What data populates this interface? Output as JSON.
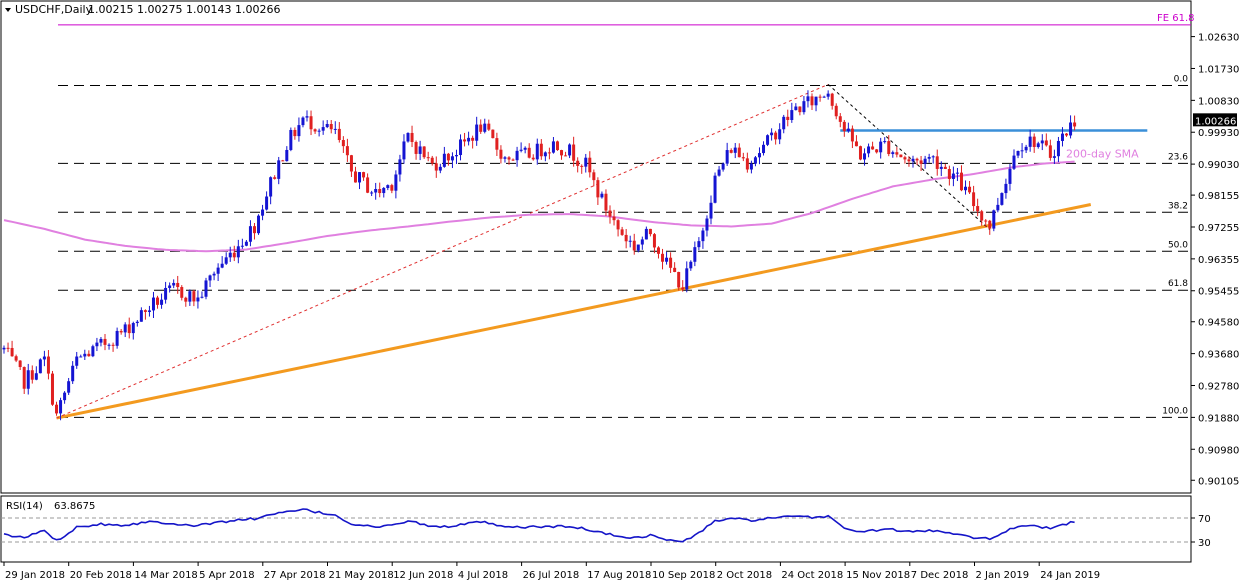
{
  "header": {
    "symbol": "USDCHF,Daily",
    "ohlc": "1.00215 1.00275 1.00143 1.00266"
  },
  "chart_data": {
    "type": "candlestick",
    "price_axis": {
      "range": [
        0.8983,
        1.0355
      ],
      "ticks": [
        "1.02630",
        "1.01730",
        "1.00830",
        "0.99930",
        "0.99030",
        "0.98155",
        "0.97255",
        "0.96355",
        "0.95455",
        "0.94580",
        "0.93680",
        "0.92780",
        "0.91880",
        "0.90980",
        "0.90105"
      ],
      "current_price": "1.00266"
    },
    "time_axis": {
      "labels": [
        "29 Jan 2018",
        "20 Feb 2018",
        "14 Mar 2018",
        "5 Apr 2018",
        "27 Apr 2018",
        "21 May 2018",
        "12 Jun 2018",
        "4 Jul 2018",
        "26 Jul 2018",
        "17 Aug 2018",
        "10 Sep 2018",
        "2 Oct 2018",
        "24 Oct 2018",
        "15 Nov 2018",
        "7 Dec 2018",
        "2 Jan 2019",
        "24 Jan 2019"
      ]
    },
    "fib_levels": [
      {
        "label": "0.0",
        "price": 1.0125
      },
      {
        "label": "23.6",
        "price": 0.9905
      },
      {
        "label": "38.2",
        "price": 0.9767
      },
      {
        "label": "50.0",
        "price": 0.9657
      },
      {
        "label": "61.8",
        "price": 0.9547
      },
      {
        "label": "100.0",
        "price": 0.9188
      }
    ],
    "fe_level": {
      "label": "FE 61.8",
      "price": 1.0296
    },
    "sma_label": "200-day SMA",
    "resistance_price": 0.9998,
    "trendline": {
      "from": {
        "bar": 13,
        "price": 0.9186
      },
      "to": {
        "bar": 269,
        "price": 0.9789
      }
    },
    "retrace_line": {
      "from": {
        "bar": 13,
        "price": 0.9186
      },
      "to": {
        "bar": 204,
        "price": 1.0128
      }
    },
    "retrace_line_2": {
      "from": {
        "bar": 204,
        "price": 1.0128
      },
      "to": {
        "bar": 244,
        "price": 0.9718
      }
    },
    "candles_anchors": [
      [
        0,
        0.938
      ],
      [
        5,
        0.929
      ],
      [
        10,
        0.935
      ],
      [
        13,
        0.9192
      ],
      [
        18,
        0.935
      ],
      [
        24,
        0.939
      ],
      [
        30,
        0.9435
      ],
      [
        36,
        0.95
      ],
      [
        42,
        0.955
      ],
      [
        48,
        0.952
      ],
      [
        52,
        0.96
      ],
      [
        57,
        0.966
      ],
      [
        62,
        0.973
      ],
      [
        66,
        0.985
      ],
      [
        70,
        0.996
      ],
      [
        74,
        1.003
      ],
      [
        78,
        1.001
      ],
      [
        82,
        0.999
      ],
      [
        86,
        0.988
      ],
      [
        92,
        0.982
      ],
      [
        96,
        0.985
      ],
      [
        100,
        0.998
      ],
      [
        106,
        0.99
      ],
      [
        112,
        0.994
      ],
      [
        118,
        1.001
      ],
      [
        124,
        0.992
      ],
      [
        130,
        0.993
      ],
      [
        136,
        0.996
      ],
      [
        140,
        0.994
      ],
      [
        144,
        0.99
      ],
      [
        148,
        0.98
      ],
      [
        152,
        0.972
      ],
      [
        156,
        0.967
      ],
      [
        160,
        0.971
      ],
      [
        164,
        0.962
      ],
      [
        168,
        0.956
      ],
      [
        172,
        0.968
      ],
      [
        176,
        0.986
      ],
      [
        180,
        0.995
      ],
      [
        184,
        0.991
      ],
      [
        188,
        0.995
      ],
      [
        192,
        1.001
      ],
      [
        196,
        1.006
      ],
      [
        200,
        1.008
      ],
      [
        204,
        1.011
      ],
      [
        208,
        1.0
      ],
      [
        212,
        0.993
      ],
      [
        218,
        0.996
      ],
      [
        224,
        0.991
      ],
      [
        230,
        0.992
      ],
      [
        236,
        0.986
      ],
      [
        240,
        0.979
      ],
      [
        244,
        0.973
      ],
      [
        247,
        0.983
      ],
      [
        251,
        0.996
      ],
      [
        255,
        0.997
      ],
      [
        259,
        0.993
      ],
      [
        262,
        0.998
      ],
      [
        265,
        1.0026
      ]
    ],
    "sma_anchors": [
      [
        0,
        0.9745
      ],
      [
        10,
        0.972
      ],
      [
        20,
        0.969
      ],
      [
        30,
        0.9672
      ],
      [
        40,
        0.9661
      ],
      [
        50,
        0.9657
      ],
      [
        60,
        0.9662
      ],
      [
        70,
        0.968
      ],
      [
        80,
        0.97
      ],
      [
        90,
        0.9715
      ],
      [
        100,
        0.9727
      ],
      [
        110,
        0.974
      ],
      [
        120,
        0.9752
      ],
      [
        130,
        0.976
      ],
      [
        140,
        0.9762
      ],
      [
        150,
        0.9755
      ],
      [
        160,
        0.974
      ],
      [
        170,
        0.973
      ],
      [
        180,
        0.9727
      ],
      [
        190,
        0.9735
      ],
      [
        200,
        0.9765
      ],
      [
        210,
        0.9805
      ],
      [
        220,
        0.984
      ],
      [
        230,
        0.986
      ],
      [
        240,
        0.9875
      ],
      [
        250,
        0.9895
      ],
      [
        258,
        0.9905
      ],
      [
        265,
        0.991
      ]
    ],
    "rsi": {
      "label": "RSI(14)",
      "value": "63.8675",
      "levels": [
        70,
        30
      ],
      "ticks": [
        "70",
        "30"
      ],
      "range": [
        0,
        100
      ],
      "anchors": [
        [
          0,
          42
        ],
        [
          5,
          37
        ],
        [
          10,
          50
        ],
        [
          13,
          32
        ],
        [
          18,
          55
        ],
        [
          24,
          60
        ],
        [
          30,
          58
        ],
        [
          36,
          64
        ],
        [
          42,
          61
        ],
        [
          48,
          57
        ],
        [
          52,
          62
        ],
        [
          57,
          66
        ],
        [
          62,
          69
        ],
        [
          66,
          75
        ],
        [
          70,
          80
        ],
        [
          74,
          84
        ],
        [
          78,
          79
        ],
        [
          82,
          75
        ],
        [
          86,
          60
        ],
        [
          92,
          55
        ],
        [
          96,
          57
        ],
        [
          100,
          66
        ],
        [
          106,
          55
        ],
        [
          112,
          57
        ],
        [
          118,
          64
        ],
        [
          124,
          54
        ],
        [
          130,
          55
        ],
        [
          136,
          56
        ],
        [
          140,
          55
        ],
        [
          144,
          52
        ],
        [
          148,
          45
        ],
        [
          152,
          40
        ],
        [
          156,
          37
        ],
        [
          160,
          41
        ],
        [
          164,
          34
        ],
        [
          168,
          30
        ],
        [
          172,
          45
        ],
        [
          176,
          65
        ],
        [
          180,
          70
        ],
        [
          184,
          66
        ],
        [
          188,
          68
        ],
        [
          192,
          71
        ],
        [
          196,
          72
        ],
        [
          200,
          71
        ],
        [
          204,
          73
        ],
        [
          208,
          54
        ],
        [
          212,
          46
        ],
        [
          218,
          52
        ],
        [
          224,
          47
        ],
        [
          230,
          49
        ],
        [
          236,
          44
        ],
        [
          240,
          38
        ],
        [
          244,
          35
        ],
        [
          247,
          45
        ],
        [
          251,
          57
        ],
        [
          255,
          58
        ],
        [
          259,
          52
        ],
        [
          262,
          58
        ],
        [
          265,
          64
        ]
      ]
    }
  }
}
